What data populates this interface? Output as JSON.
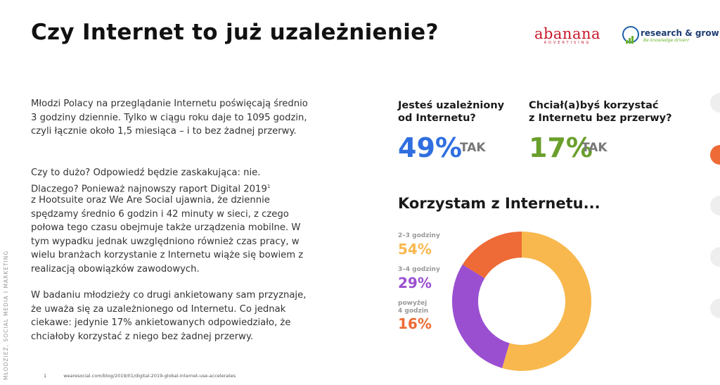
{
  "title": "Czy Internet to już uzależnienie?",
  "logos": {
    "abanana": "abanana",
    "abanana_sub": "ADVERTISING",
    "rg": "research & grow",
    "rg_slogan": "Be knowledge driven!"
  },
  "paragraphs": [
    "Młodzi Polacy na przeglądanie Internetu poświęcają średnio 3 godziny dziennie. Tylko w ciągu roku daje to 1095 godzin, czyli łącznie około 1,5 miesiąca – i to bez żadnej przerwy.",
    "Czy to dużo? Odpowiedź będzie zaskakująca: nie. Dlaczego? Ponieważ najnowszy raport Digital 2019",
    "z Hootsuite oraz We Are Social ujawnia, że dziennie spędzamy średnio 6 godzin i 42 minuty w sieci, z czego połowa tego czasu obejmuje także urządzenia mobilne. W tym wypadku jednak uwzględniono również czas pracy, w wielu branżach korzystanie z Internetu wiąże się bowiem z realizacją obowiązków zawodowych.",
    "W badaniu młodzieży co drugi ankietowany sam przyznaje, że uważa się za uzależnionego od Internetu. Co jednak ciekawe: jedynie 17% ankietowanych odpowiedziało, że chciałoby korzystać z niego bez żadnej przerwy."
  ],
  "footnote": {
    "mark": "1",
    "number": "1",
    "text": "wearesocial.com/blog/2019/01/digital-2019-global-internet-use-accelerates"
  },
  "side_label": "MŁODZIEŻ, SOCIAL MEDIA I MARKETING",
  "stats": [
    {
      "question_line1": "Jesteś uzależniony",
      "question_line2": "od Internetu?",
      "value": "49%",
      "answer": "TAK",
      "color": "#2f6fe0"
    },
    {
      "question_line1": "Chciał(a)byś korzystać",
      "question_line2": "z Internetu bez przerwy?",
      "value": "17%",
      "answer": "TAK",
      "color": "#6a9f2c"
    }
  ],
  "chart_data": {
    "type": "pie",
    "title": "Korzystam z Internetu...",
    "categories": [
      "2–3 godziny",
      "3–4 godziny",
      "powyżej 4 godzin"
    ],
    "values": [
      54,
      29,
      16
    ],
    "labels": [
      "54%",
      "29%",
      "16%"
    ],
    "colors": [
      "#f8b84e",
      "#9a4fd0",
      "#ee6a36"
    ],
    "legend_lines": [
      [
        "2–3 godziny"
      ],
      [
        "3–4 godziny"
      ],
      [
        "powyżej",
        "4 godzin"
      ]
    ]
  }
}
